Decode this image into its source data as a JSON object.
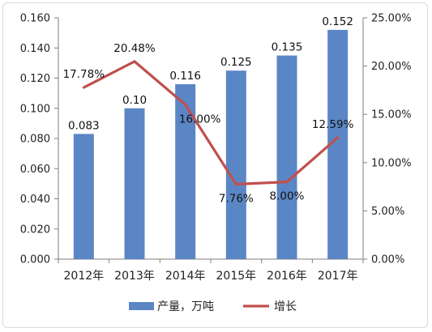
{
  "chart_data": {
    "type": "bar+line",
    "categories": [
      "2012年",
      "2013年",
      "2014年",
      "2015年",
      "2016年",
      "2017年"
    ],
    "series": [
      {
        "name": "产量，万吨",
        "type": "bar",
        "axis": "left",
        "color": "#5b86c5",
        "values": [
          0.083,
          0.1,
          0.116,
          0.125,
          0.135,
          0.152
        ],
        "labels": [
          "0.083",
          "0.10",
          "0.116",
          "0.125",
          "0.135",
          "0.152"
        ]
      },
      {
        "name": "增长",
        "type": "line",
        "axis": "right",
        "color": "#c0504d",
        "values": [
          17.78,
          20.48,
          16.0,
          7.76,
          8.0,
          12.59
        ],
        "labels": [
          "17.78%",
          "20.48%",
          "16.00%",
          "7.76%",
          "8.00%",
          "12.59%"
        ]
      }
    ],
    "y_left": {
      "range": [
        0,
        0.16
      ],
      "ticks": [
        0,
        0.02,
        0.04,
        0.06,
        0.08,
        0.1,
        0.12,
        0.14,
        0.16
      ],
      "tick_labels": [
        "0.000",
        "0.020",
        "0.040",
        "0.060",
        "0.080",
        "0.100",
        "0.120",
        "0.140",
        "0.160"
      ]
    },
    "y_right": {
      "range": [
        0,
        25
      ],
      "ticks": [
        0,
        5,
        10,
        15,
        20,
        25
      ],
      "tick_labels": [
        "0.00%",
        "5.00%",
        "10.00%",
        "15.00%",
        "20.00%",
        "25.00%"
      ]
    },
    "grid": false,
    "legend_position": "bottom"
  }
}
